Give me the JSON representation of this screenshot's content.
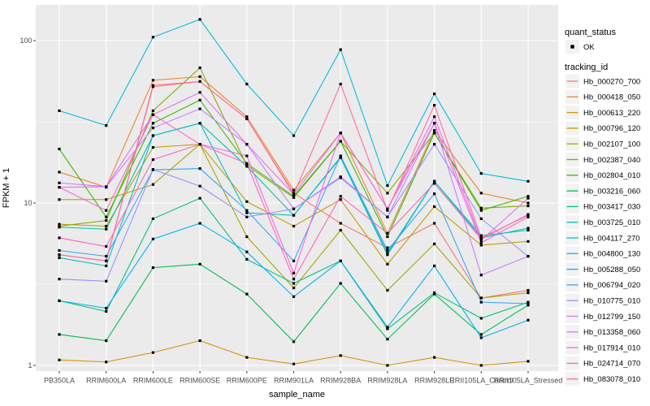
{
  "figure": {
    "y_axis_title": "FPKM + 1",
    "x_axis_title": "sample_name"
  },
  "legend": {
    "quant_status_title": "quant_status",
    "quant_status_items": [
      {
        "label": "OK",
        "marker": "black-filled-square"
      }
    ],
    "tracking_id_title": "tracking_id"
  },
  "chart_data": {
    "type": "line",
    "title": "",
    "xlabel": "sample_name",
    "ylabel": "FPKM + 1",
    "y_scale": "log10",
    "y_ticks": [
      1,
      10,
      100
    ],
    "y_minor_gridlines": [
      3.162,
      31.62
    ],
    "ylim": [
      0.92,
      166
    ],
    "grid": true,
    "legend_position": "right",
    "panel_bg_color": "#EBEBEB",
    "grid_color": "#FFFFFF",
    "point_color": "#000000",
    "point_shape": "filled-square",
    "categories": [
      "PB350LA",
      "RRIM600LA",
      "RRIM600LE",
      "RRIM600SE",
      "RRIM600PE",
      "RRIM901LA",
      "RRIM928BA",
      "RRIM928LA",
      "RRIM928LE",
      "RRII105LA_Control",
      "RRII105LA_Stressed"
    ],
    "series": [
      {
        "name": "Hb_000270_700",
        "color": "#F8766D",
        "values": [
          4.8,
          4.4,
          52,
          56,
          33,
          11.5,
          7.5,
          5.3,
          7.5,
          2.6,
          2.9
        ]
      },
      {
        "name": "Hb_000418_050",
        "color": "#EA8331",
        "values": [
          15.5,
          12.5,
          57,
          60,
          34,
          12,
          27,
          6.5,
          28,
          11.5,
          10
        ]
      },
      {
        "name": "Hb_000613_220",
        "color": "#D89000",
        "values": [
          1.08,
          1.05,
          1.2,
          1.42,
          1.12,
          1.02,
          1.15,
          1.0,
          1.12,
          1.0,
          1.06
        ]
      },
      {
        "name": "Hb_000796_120",
        "color": "#C09B00",
        "values": [
          7.4,
          7.2,
          22,
          23,
          10.2,
          7.2,
          10.5,
          4.2,
          9.5,
          5.5,
          5.8
        ]
      },
      {
        "name": "Hb_002107_100",
        "color": "#A3A500",
        "values": [
          10.5,
          10.5,
          13,
          23,
          6.2,
          3.0,
          6.8,
          2.9,
          5.6,
          2.6,
          2.8
        ]
      },
      {
        "name": "Hb_002387_040",
        "color": "#7CAE00",
        "values": [
          7.2,
          7.8,
          37,
          68,
          17,
          10.8,
          24,
          11.5,
          27,
          9.3,
          9.6
        ]
      },
      {
        "name": "Hb_002804_010",
        "color": "#39B600",
        "values": [
          21.5,
          8.2,
          31,
          43,
          17.5,
          11,
          24,
          6.2,
          27,
          9.0,
          11
        ]
      },
      {
        "name": "Hb_003216_060",
        "color": "#00BB4E",
        "values": [
          1.55,
          1.42,
          4.0,
          4.2,
          2.75,
          1.4,
          3.2,
          1.45,
          2.75,
          1.55,
          2.35
        ]
      },
      {
        "name": "Hb_003417_030",
        "color": "#00BF7D",
        "values": [
          2.5,
          2.15,
          8.0,
          10.7,
          4.5,
          3.2,
          4.4,
          1.68,
          2.8,
          1.95,
          2.45
        ]
      },
      {
        "name": "Hb_003725_010",
        "color": "#00C1A3",
        "values": [
          7.1,
          6.9,
          26,
          31,
          16.8,
          8.4,
          19.2,
          4.9,
          13.6,
          6.1,
          7.0
        ]
      },
      {
        "name": "Hb_004117_270",
        "color": "#00BFC4",
        "values": [
          4.6,
          4.1,
          26,
          31,
          8.7,
          8.4,
          19,
          4.8,
          13.6,
          6.3,
          6.8
        ]
      },
      {
        "name": "Hb_004800_130",
        "color": "#00BAE0",
        "values": [
          37,
          30,
          105,
          135,
          54,
          26,
          88,
          12.8,
          47,
          15.2,
          13.6
        ]
      },
      {
        "name": "Hb_005288_050",
        "color": "#00B0F6",
        "values": [
          2.5,
          2.25,
          6.0,
          7.5,
          5.0,
          2.65,
          4.4,
          1.72,
          4.1,
          1.48,
          1.9
        ]
      },
      {
        "name": "Hb_006794_020",
        "color": "#35A2FF",
        "values": [
          5.1,
          4.7,
          16,
          16.3,
          9.0,
          4.4,
          19.5,
          5.1,
          11.4,
          2.45,
          2.4
        ]
      },
      {
        "name": "Hb_010775_010",
        "color": "#9590FF",
        "values": [
          3.4,
          3.3,
          16.1,
          12.7,
          8.2,
          9.2,
          14.3,
          8.2,
          23,
          8.0,
          4.7
        ]
      },
      {
        "name": "Hb_012799_150",
        "color": "#C77CFF",
        "values": [
          13.3,
          12.6,
          29,
          38,
          23,
          9.2,
          14.5,
          8.2,
          31,
          3.6,
          4.7
        ]
      },
      {
        "name": "Hb_013358_060",
        "color": "#E76BF3",
        "values": [
          12.5,
          12.6,
          35,
          48,
          23,
          11.3,
          27,
          9.2,
          34,
          5.9,
          10.7
        ]
      },
      {
        "name": "Hb_017914_010",
        "color": "#FA62DB",
        "values": [
          12.5,
          9.0,
          35,
          23,
          19.5,
          3.7,
          27,
          9.2,
          31,
          5.7,
          8.2
        ]
      },
      {
        "name": "Hb_024714_070",
        "color": "#FF62BC",
        "values": [
          6.1,
          5.4,
          18.5,
          23,
          17.5,
          3.4,
          11,
          6.5,
          13.2,
          6.0,
          8.5
        ]
      },
      {
        "name": "Hb_083078_010",
        "color": "#FF6A98",
        "values": [
          4.8,
          4.4,
          53,
          56,
          33,
          11.3,
          54,
          9.0,
          40,
          6.1,
          8.4
        ]
      }
    ]
  }
}
